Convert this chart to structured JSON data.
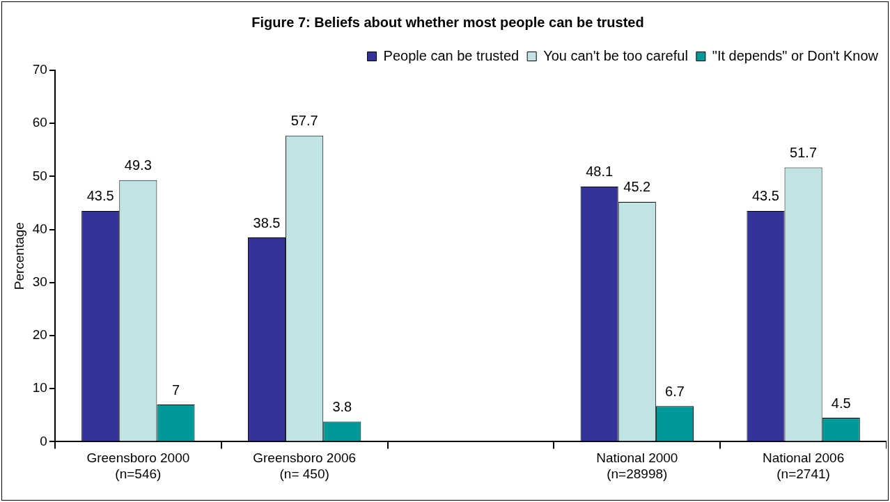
{
  "chart_data": {
    "type": "bar",
    "title": "Figure 7: Beliefs about whether most people can be trusted",
    "ylabel": "Percentage",
    "categories": [
      "Greensboro 2000\n(n=546)",
      "Greensboro 2006\n(n= 450)",
      null,
      "National 2000\n(n=28998)",
      "National 2006\n(n=2741)"
    ],
    "series": [
      {
        "name": "People can be trusted",
        "color": "#333399",
        "values": [
          43.5,
          38.5,
          null,
          48.1,
          43.5
        ]
      },
      {
        "name": "You can't be too careful",
        "color": "#c0e4e4",
        "values": [
          49.3,
          57.7,
          null,
          45.2,
          51.7
        ]
      },
      {
        "name": "\"It depends\" or Don't Know",
        "color": "#009999",
        "values": [
          7,
          3.8,
          null,
          6.7,
          4.5
        ]
      }
    ],
    "ylim": [
      0,
      70
    ],
    "yticks": [
      0,
      10,
      20,
      30,
      40,
      50,
      60,
      70
    ],
    "grid": false,
    "legend": "top",
    "data_labels": true
  }
}
